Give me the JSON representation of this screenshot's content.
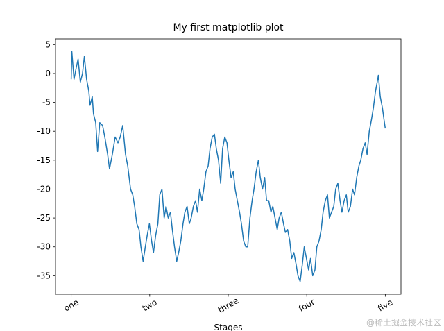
{
  "chart_data": {
    "type": "line",
    "title": "My first matplotlib plot",
    "x_label": "Stages",
    "watermark": "@稀土掘金技术社区",
    "color": "#1f77b4",
    "x": [
      0,
      2,
      9,
      16,
      22,
      29,
      36,
      42,
      49,
      56,
      60,
      67,
      71,
      78,
      84,
      91,
      100,
      107,
      116,
      122,
      131,
      140,
      149,
      156,
      164,
      173,
      180,
      189,
      196,
      202,
      209,
      216,
      222,
      229,
      236,
      242,
      249,
      256,
      262,
      269,
      276,
      282,
      289,
      296,
      302,
      309,
      316,
      322,
      329,
      336,
      342,
      349,
      356,
      362,
      369,
      376,
      382,
      389,
      396,
      402,
      409,
      416,
      422,
      429,
      436,
      442,
      449,
      456,
      462,
      469,
      476,
      482,
      489,
      496,
      502,
      509,
      516,
      522,
      529,
      536,
      542,
      549,
      556,
      562,
      569,
      576,
      582,
      589,
      596,
      602,
      609,
      616,
      622,
      629,
      636,
      642,
      649,
      656,
      662,
      669,
      676,
      682,
      689,
      696,
      702,
      709,
      716,
      722,
      729,
      736,
      742,
      749,
      756,
      762,
      769,
      776,
      782,
      789,
      796,
      802,
      809,
      816,
      822,
      829,
      836,
      842,
      849,
      856,
      862,
      869,
      876,
      882,
      889,
      896,
      902,
      909,
      916,
      922,
      929,
      936,
      942,
      949,
      956,
      962,
      969,
      976,
      978,
      984,
      991,
      996,
      1000
    ],
    "values": [
      -1,
      3.8,
      -1,
      1,
      2.5,
      -1.5,
      0,
      3,
      -1,
      -3,
      -5.5,
      -4,
      -7,
      -8.5,
      -13.5,
      -8.5,
      -9,
      -11,
      -14,
      -16.5,
      -14,
      -11,
      -12,
      -11,
      -9,
      -14,
      -16,
      -20,
      -21,
      -23,
      -26,
      -27,
      -30,
      -32.5,
      -30,
      -28,
      -26,
      -29,
      -31,
      -28,
      -26,
      -21,
      -20,
      -25,
      -23,
      -25,
      -24,
      -27,
      -30,
      -32.5,
      -31,
      -29,
      -26,
      -24,
      -23,
      -26,
      -25,
      -23,
      -22,
      -24,
      -20,
      -22,
      -20,
      -17,
      -16,
      -13,
      -11,
      -10.5,
      -13,
      -15,
      -19,
      -13,
      -11,
      -12,
      -15,
      -18,
      -17,
      -20,
      -22,
      -24,
      -26,
      -29,
      -30,
      -30,
      -25,
      -22,
      -20,
      -17,
      -15,
      -18,
      -20,
      -18,
      -22,
      -22,
      -24,
      -23,
      -25,
      -27,
      -25,
      -24,
      -26,
      -27.5,
      -27,
      -29,
      -32,
      -31,
      -33,
      -35,
      -36,
      -33,
      -30,
      -32,
      -34,
      -32,
      -35,
      -34,
      -30,
      -29,
      -27,
      -24,
      -22,
      -21,
      -25,
      -24,
      -23,
      -20,
      -19,
      -22,
      -24,
      -22,
      -21,
      -24,
      -23,
      -20,
      -21,
      -18,
      -16,
      -15,
      -13,
      -12,
      -14,
      -10,
      -8,
      -6,
      -3,
      -1,
      -0.3,
      -4,
      -6,
      -8,
      -9.5
    ],
    "xlim": [
      -50,
      1050
    ],
    "xticks": [
      {
        "value": 0,
        "label": "one"
      },
      {
        "value": 250,
        "label": "two"
      },
      {
        "value": 500,
        "label": "three"
      },
      {
        "value": 750,
        "label": "four"
      },
      {
        "value": 1000,
        "label": "five"
      }
    ],
    "ylim": [
      -38.2,
      6
    ],
    "yticks": [
      -35,
      -30,
      -25,
      -20,
      -15,
      -10,
      -5,
      0,
      5
    ],
    "grid": false
  }
}
